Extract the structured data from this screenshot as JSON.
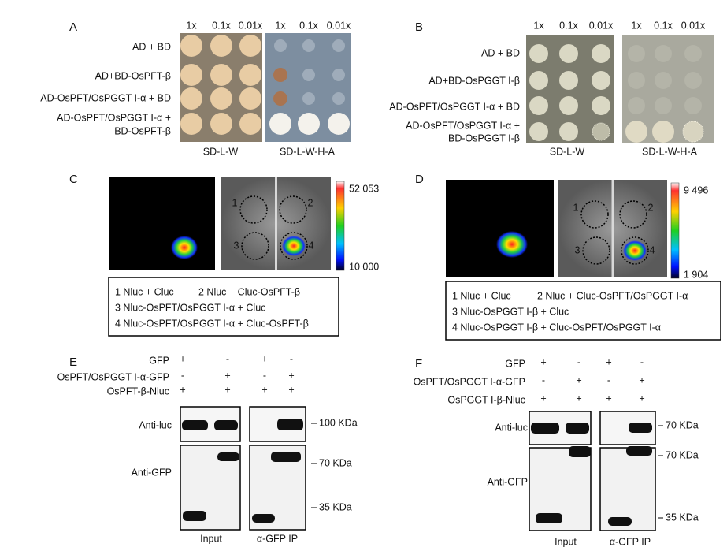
{
  "panels": [
    {
      "label": "A",
      "dilutions": [
        "1x",
        "0.1x",
        "0.01x"
      ],
      "rows": [
        [
          "AD + BD"
        ],
        [
          "AD+BD-OsPFT-β"
        ],
        [
          "AD-OsPFT/OsPGGT I-α + BD"
        ],
        [
          "AD-OsPFT/OsPGGT I-α +",
          "BD-OsPFT-β"
        ]
      ],
      "media": [
        "SD-L-W",
        "SD-L-W-H-A"
      ]
    },
    {
      "label": "B",
      "dilutions": [
        "1x",
        "0.1x",
        "0.01x"
      ],
      "rows": [
        [
          "AD + BD"
        ],
        [
          "AD+BD-OsPGGT I-β"
        ],
        [
          "AD-OsPFT/OsPGGT I-α + BD"
        ],
        [
          "AD-OsPFT/OsPGGT I-α +",
          "BD-OsPGGT I-β"
        ]
      ],
      "media": [
        "SD-L-W",
        "SD-L-W-H-A"
      ]
    },
    {
      "label": "C",
      "scale": {
        "max": "52 053",
        "min": "10 000"
      },
      "spots": [
        "1",
        "2",
        "3",
        "4"
      ],
      "legend": [
        [
          "1 Nluc + Cluc",
          "2 Nluc + Cluc-OsPFT-β"
        ],
        [
          "3 Nluc-OsPFT/OsPGGT I-α + Cluc"
        ],
        [
          "4 Nluc-OsPFT/OsPGGT I-α + Cluc-OsPFT-β"
        ]
      ]
    },
    {
      "label": "D",
      "scale": {
        "max": "9 496",
        "min": "1 904"
      },
      "spots": [
        "1",
        "2",
        "3",
        "4"
      ],
      "legend": [
        [
          "1 Nluc + Cluc",
          "2 Nluc + Cluc-OsPFT/OsPGGT I-α"
        ],
        [
          "3 Nluc-OsPGGT I-β + Cluc"
        ],
        [
          "4 Nluc-OsPGGT I-β + Cluc-OsPFT/OsPGGT I-α"
        ]
      ]
    },
    {
      "label": "E",
      "conditions": [
        {
          "label": "GFP",
          "signs": [
            "+",
            "-",
            "+",
            "-"
          ]
        },
        {
          "label": "OsPFT/OsPGGT I-α-GFP",
          "signs": [
            "-",
            "+",
            "-",
            "+"
          ]
        },
        {
          "label": "OsPFT-β-Nluc",
          "signs": [
            "+",
            "+",
            "+",
            "+"
          ]
        }
      ],
      "blots": [
        "Anti-luc",
        "Anti-GFP"
      ],
      "markers": [
        "100 KDa",
        "70 KDa",
        "35 KDa"
      ],
      "groups": [
        "Input",
        "α-GFP IP"
      ]
    },
    {
      "label": "F",
      "conditions": [
        {
          "label": "GFP",
          "signs": [
            "+",
            "-",
            "+",
            "-"
          ]
        },
        {
          "label": "OsPFT/OsPGGT I-α-GFP",
          "signs": [
            "-",
            "+",
            "-",
            "+"
          ]
        },
        {
          "label": "OsPGGT I-β-Nluc",
          "signs": [
            "+",
            "+",
            "+",
            "+"
          ]
        }
      ],
      "blots": [
        "Anti-luc",
        "Anti-GFP"
      ],
      "markers": [
        "70 KDa",
        "70 KDa",
        "35 KDa"
      ],
      "groups": [
        "Input",
        "α-GFP IP"
      ]
    }
  ]
}
